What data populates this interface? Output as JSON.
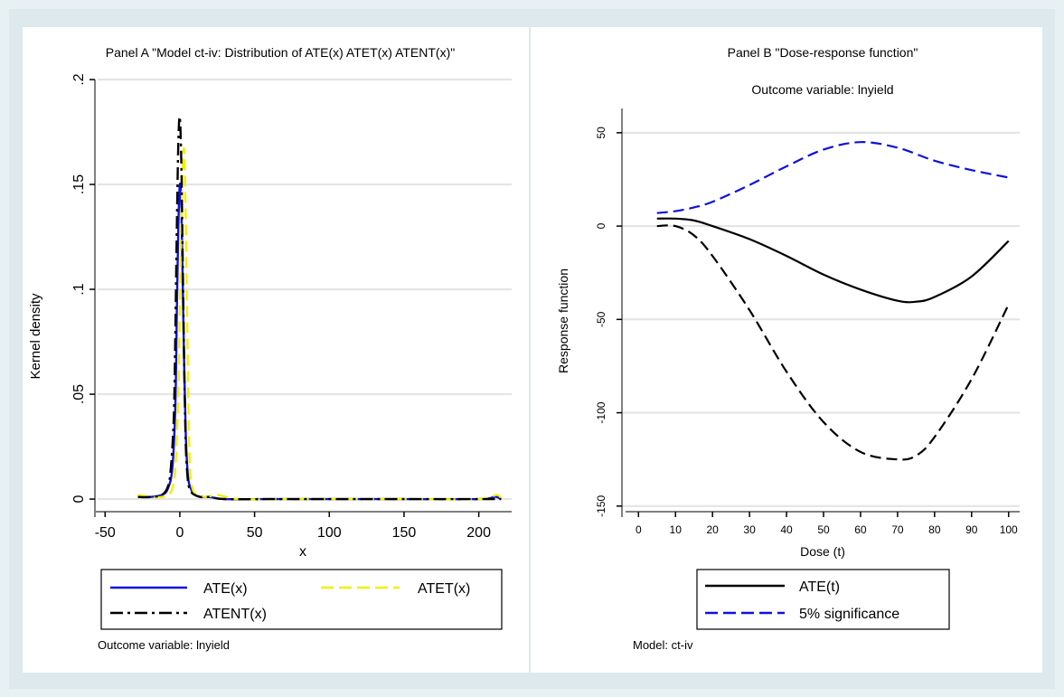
{
  "chart_data": [
    {
      "type": "line",
      "panel": "A",
      "title": "Panel A \"Model ct-iv: Distribution of ATE(x) ATET(x) ATENT(x)\"",
      "xlabel": "x",
      "ylabel": "Kernel density",
      "xlim": [
        -55,
        222
      ],
      "ylim": [
        -0.006,
        0.2
      ],
      "xticks": [
        -50,
        0,
        50,
        100,
        150,
        200
      ],
      "xtick_labels": [
        "-50",
        "0",
        "50",
        "100",
        "150",
        "200"
      ],
      "yticks": [
        0,
        0.05,
        0.1,
        0.15,
        0.2
      ],
      "ytick_labels": [
        "0",
        ".05",
        ".1",
        ".15",
        ".2"
      ],
      "grid": true,
      "note": "Outcome variable: lnyield",
      "legend": {
        "position": "bottom",
        "entries": [
          "ATE(x)",
          "ATET(x)",
          "ATENT(x)"
        ]
      },
      "series": [
        {
          "name": "ATE(x)",
          "color": "#1010dd",
          "style": "solid",
          "x": [
            -28,
            -20,
            -12,
            -8,
            -5,
            -3,
            -2,
            -1,
            0,
            1,
            2,
            3,
            4,
            5,
            6,
            8,
            10,
            14,
            20,
            30,
            60,
            100,
            150,
            200,
            210,
            212,
            215
          ],
          "y": [
            0.001,
            0.001,
            0.002,
            0.005,
            0.015,
            0.045,
            0.09,
            0.13,
            0.15,
            0.14,
            0.1,
            0.06,
            0.03,
            0.015,
            0.008,
            0.004,
            0.002,
            0.001,
            0.001,
            0,
            0,
            0,
            0,
            0,
            0.001,
            0.001,
            0
          ]
        },
        {
          "name": "ATET(x)",
          "color": "#f0f000",
          "style": "dashed",
          "x": [
            -28,
            -20,
            -12,
            -8,
            -5,
            -3,
            -1,
            0,
            1,
            2,
            3,
            4,
            5,
            6,
            7,
            9,
            12,
            18,
            25,
            40,
            80,
            150,
            200,
            212,
            215
          ],
          "y": [
            0.002,
            0.001,
            0.001,
            0.002,
            0.005,
            0.015,
            0.05,
            0.09,
            0.13,
            0.16,
            0.165,
            0.13,
            0.08,
            0.035,
            0.012,
            0.004,
            0.002,
            0.001,
            0.002,
            0,
            0,
            0,
            0,
            0.002,
            0
          ]
        },
        {
          "name": "ATENT(x)",
          "color": "#000000",
          "style": "dashdot",
          "x": [
            -28,
            -20,
            -12,
            -8,
            -6,
            -4,
            -3,
            -2,
            -1,
            0,
            1,
            2,
            3,
            4,
            5,
            6,
            8,
            10,
            14,
            20,
            30,
            60,
            100,
            150,
            200,
            215
          ],
          "y": [
            0.001,
            0.001,
            0.002,
            0.006,
            0.015,
            0.04,
            0.08,
            0.13,
            0.17,
            0.182,
            0.16,
            0.11,
            0.06,
            0.025,
            0.012,
            0.006,
            0.003,
            0.002,
            0.001,
            0.001,
            0,
            0,
            0,
            0,
            0,
            0
          ]
        }
      ]
    },
    {
      "type": "line",
      "panel": "B",
      "title": "Panel B \"Dose-response function\"",
      "subtitle": "Outcome variable: lnyield",
      "xlabel": "Dose (t)",
      "ylabel": "Response function",
      "xlim": [
        -3,
        103
      ],
      "ylim": [
        -153,
        63
      ],
      "xticks": [
        0,
        10,
        20,
        30,
        40,
        50,
        60,
        70,
        80,
        90,
        100
      ],
      "xtick_labels": [
        "0",
        "10",
        "20",
        "30",
        "40",
        "50",
        "60",
        "70",
        "80",
        "90",
        "100"
      ],
      "yticks": [
        -150,
        -100,
        -50,
        0,
        50
      ],
      "ytick_labels": [
        "-150",
        "-100",
        "-50",
        "0",
        "50"
      ],
      "grid": true,
      "note": "Model: ct-iv",
      "legend": {
        "position": "bottom",
        "entries": [
          "ATE(t)",
          "5% significance"
        ]
      },
      "series": [
        {
          "name": "ATE(t)",
          "color": "#000000",
          "style": "solid",
          "x": [
            5,
            10,
            15,
            20,
            30,
            40,
            50,
            60,
            70,
            75,
            80,
            90,
            100
          ],
          "y": [
            4,
            4,
            3,
            0,
            -7,
            -16,
            -26,
            -34,
            -40,
            -40.5,
            -38,
            -27,
            -8
          ]
        },
        {
          "name": "5% significance",
          "color": "#1010dd",
          "style": "dashed",
          "x": [
            5,
            10,
            15,
            20,
            30,
            40,
            50,
            60,
            70,
            80,
            90,
            100
          ],
          "y": [
            7,
            8,
            10,
            13,
            22,
            32,
            41,
            45,
            42,
            35,
            30,
            26
          ]
        },
        {
          "name": "5% significance (lower)",
          "color": "#000000",
          "style": "dashed",
          "x": [
            5,
            10,
            15,
            20,
            30,
            40,
            50,
            60,
            70,
            75,
            80,
            90,
            100
          ],
          "y": [
            0,
            0,
            -5,
            -16,
            -45,
            -78,
            -105,
            -121,
            -125,
            -123,
            -113,
            -82,
            -42
          ]
        }
      ]
    }
  ]
}
